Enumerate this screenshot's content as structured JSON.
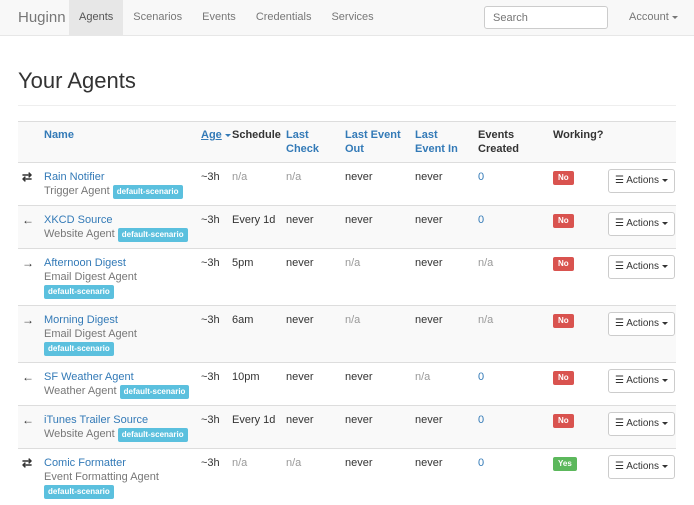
{
  "nav": {
    "brand": "Huginn",
    "links": [
      "Agents",
      "Scenarios",
      "Events",
      "Credentials",
      "Services"
    ],
    "active": "Agents",
    "search_placeholder": "Search",
    "account": "Account"
  },
  "page_title": "Your Agents",
  "table": {
    "headers": {
      "name": "Name",
      "age": "Age",
      "schedule": "Schedule",
      "last_check": "Last Check",
      "last_event_out": "Last Event Out",
      "last_event_in": "Last Event In",
      "events_created": "Events Created",
      "working": "Working?"
    },
    "rows": [
      {
        "icon": "two-way-arrows-icon",
        "glyph": "⇄",
        "name": "Rain Notifier",
        "type": "Trigger Agent",
        "scenario": "default-scenario",
        "age": "~3h",
        "schedule": "n/a",
        "last_check": "n/a",
        "last_event_out": "never",
        "last_event_in": "never",
        "events_created": "0",
        "working": "No",
        "actions": "Actions"
      },
      {
        "icon": "arrow-left-icon",
        "glyph": "←",
        "name": "XKCD Source",
        "type": "Website Agent",
        "scenario": "default-scenario",
        "age": "~3h",
        "schedule": "Every 1d",
        "last_check": "never",
        "last_event_out": "never",
        "last_event_in": "never",
        "events_created": "0",
        "working": "No",
        "actions": "Actions"
      },
      {
        "icon": "arrow-right-icon",
        "glyph": "→",
        "name": "Afternoon Digest",
        "type": "Email Digest Agent",
        "scenario": "default-scenario",
        "age": "~3h",
        "schedule": "5pm",
        "last_check": "never",
        "last_event_out": "n/a",
        "last_event_in": "never",
        "events_created": "n/a",
        "working": "No",
        "actions": "Actions",
        "wrap": true
      },
      {
        "icon": "arrow-right-icon",
        "glyph": "→",
        "name": "Morning Digest",
        "type": "Email Digest Agent",
        "scenario": "default-scenario",
        "age": "~3h",
        "schedule": "6am",
        "last_check": "never",
        "last_event_out": "n/a",
        "last_event_in": "never",
        "events_created": "n/a",
        "working": "No",
        "actions": "Actions",
        "wrap": true
      },
      {
        "icon": "arrow-left-icon",
        "glyph": "←",
        "name": "SF Weather Agent",
        "type": "Weather Agent",
        "scenario": "default-scenario",
        "age": "~3h",
        "schedule": "10pm",
        "last_check": "never",
        "last_event_out": "never",
        "last_event_in": "n/a",
        "events_created": "0",
        "working": "No",
        "actions": "Actions"
      },
      {
        "icon": "arrow-left-icon",
        "glyph": "←",
        "name": "iTunes Trailer Source",
        "type": "Website Agent",
        "scenario": "default-scenario",
        "age": "~3h",
        "schedule": "Every 1d",
        "last_check": "never",
        "last_event_out": "never",
        "last_event_in": "never",
        "events_created": "0",
        "working": "No",
        "actions": "Actions"
      },
      {
        "icon": "two-way-arrows-icon",
        "glyph": "⇄",
        "name": "Comic Formatter",
        "type": "Event Formatting Agent",
        "scenario": "default-scenario",
        "age": "~3h",
        "schedule": "n/a",
        "last_check": "n/a",
        "last_event_out": "never",
        "last_event_in": "never",
        "events_created": "0",
        "working": "Yes",
        "actions": "Actions",
        "wrap": true
      }
    ]
  },
  "colors": {
    "link": "#337ab7",
    "no": "#d9534f",
    "yes": "#5cb85c",
    "label": "#5bc0de"
  }
}
